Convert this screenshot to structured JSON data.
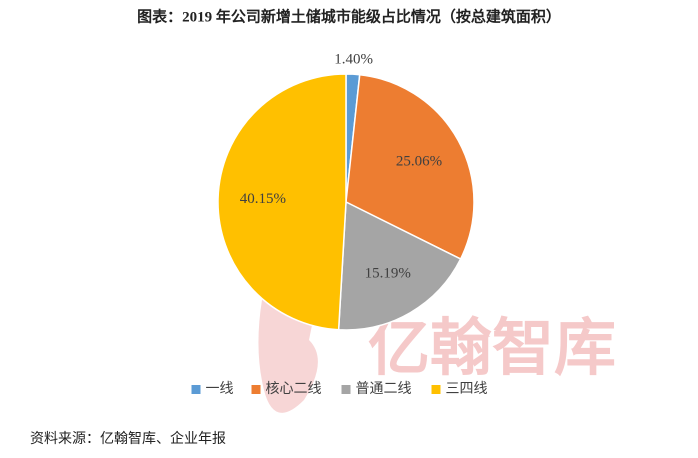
{
  "chart_data": {
    "type": "pie",
    "title": "图表：2019 年公司新增土储城市能级占比情况（按总建筑面积）",
    "categories": [
      "一线",
      "核心二线",
      "普通二线",
      "三四线"
    ],
    "values": [
      1.4,
      25.06,
      15.19,
      40.15
    ],
    "value_labels": [
      "1.40%",
      "25.06%",
      "15.19%",
      "40.15%"
    ],
    "colors": [
      "#5b9bd5",
      "#ed7d31",
      "#a5a5a5",
      "#ffc000"
    ],
    "legend": "bottom",
    "source": "资料来源：亿翰智库、企业年报"
  },
  "watermark": "亿翰智库"
}
